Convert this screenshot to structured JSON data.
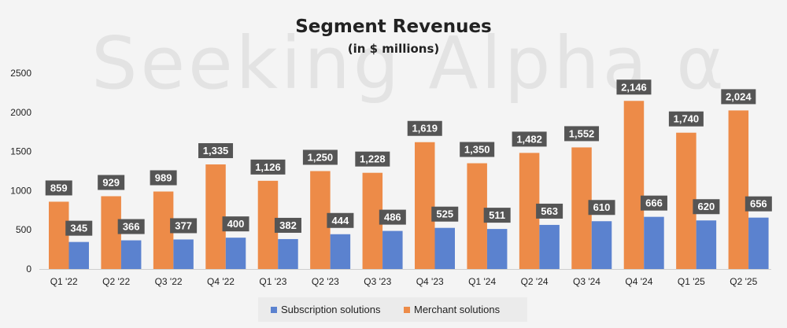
{
  "chart_data": {
    "type": "bar",
    "title": "Segment Revenues",
    "subtitle": "(in $ millions)",
    "watermark": "Seeking Alpha α",
    "categories": [
      "Q1 '22",
      "Q2 '22",
      "Q3 '22",
      "Q4 '22",
      "Q1 '23",
      "Q2 '23",
      "Q3 '23",
      "Q4 '23",
      "Q1 '24",
      "Q2 '24",
      "Q3 '24",
      "Q4 '24",
      "Q1 '25",
      "Q2 '25"
    ],
    "series": [
      {
        "name": "Merchant solutions",
        "color": "#ed8b48",
        "values": [
          859,
          929,
          989,
          1335,
          1126,
          1250,
          1228,
          1619,
          1350,
          1482,
          1552,
          2146,
          1740,
          2024
        ],
        "labels": [
          "859",
          "929",
          "989",
          "1,335",
          "1,126",
          "1,250",
          "1,228",
          "1,619",
          "1,350",
          "1,482",
          "1,552",
          "2,146",
          "1,740",
          "2,024"
        ]
      },
      {
        "name": "Subscription solutions",
        "color": "#5b82cf",
        "values": [
          345,
          366,
          377,
          400,
          382,
          444,
          486,
          525,
          511,
          563,
          610,
          666,
          620,
          656
        ],
        "labels": [
          "345",
          "366",
          "377",
          "400",
          "382",
          "444",
          "486",
          "525",
          "511",
          "563",
          "610",
          "666",
          "620",
          "656"
        ]
      }
    ],
    "legend_order": [
      "Subscription solutions",
      "Merchant solutions"
    ],
    "legend_position": "bottom",
    "ylim": [
      0,
      2500
    ],
    "yticks": [
      0,
      500,
      1000,
      1500,
      2000,
      2500
    ],
    "data_label_bg": "#555555",
    "grid": false,
    "xlabel": "",
    "ylabel": ""
  }
}
